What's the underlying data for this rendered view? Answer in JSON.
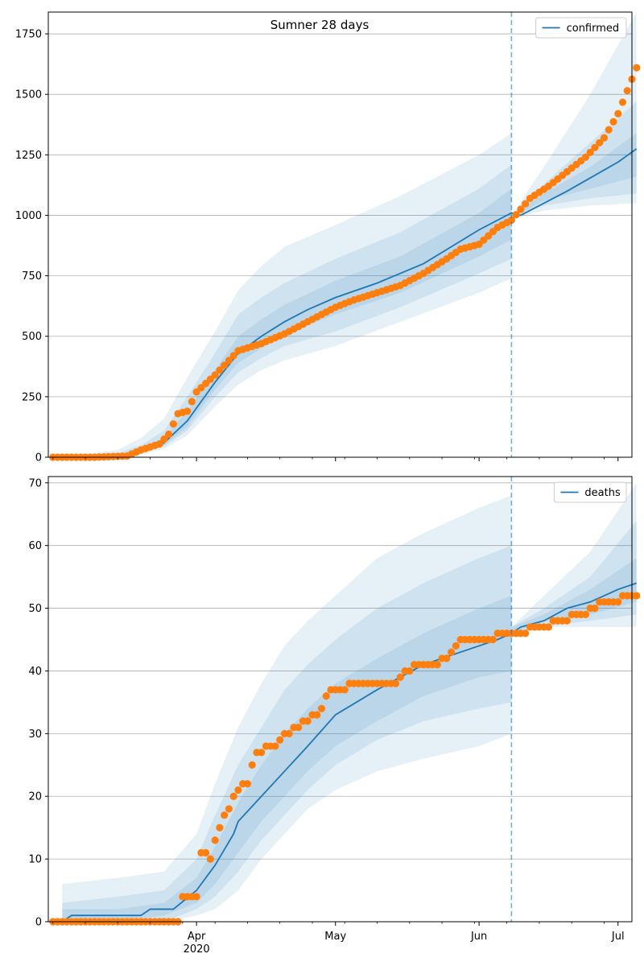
{
  "figure": {
    "title": "Sumner 28 days"
  },
  "chart_data": [
    {
      "type": "line",
      "name": "confirmed-panel",
      "legend": {
        "label": "confirmed",
        "placement": "top-right"
      },
      "ylim": [
        0,
        1840
      ],
      "yticks": [
        0,
        250,
        500,
        750,
        1000,
        1250,
        1500,
        1750
      ],
      "grid": "y",
      "forecast_start": "2020-06-08",
      "fitted": {
        "x": [
          "2020-03-03",
          "2020-03-10",
          "2020-03-15",
          "2020-03-20",
          "2020-03-25",
          "2020-03-30",
          "2020-04-05",
          "2020-04-10",
          "2020-04-15",
          "2020-04-20",
          "2020-04-25",
          "2020-05-01",
          "2020-05-10",
          "2020-05-20",
          "2020-06-01",
          "2020-06-08",
          "2020-06-10",
          "2020-06-20",
          "2020-07-01",
          "2020-07-05"
        ],
        "values": [
          0,
          2,
          8,
          25,
          60,
          150,
          310,
          430,
          500,
          560,
          610,
          660,
          720,
          800,
          940,
          1010,
          1000,
          1100,
          1220,
          1275
        ]
      },
      "bands": [
        {
          "x": [
            "2020-03-03",
            "2020-03-15",
            "2020-03-20",
            "2020-03-25",
            "2020-03-30",
            "2020-04-05",
            "2020-04-10",
            "2020-04-15",
            "2020-04-20",
            "2020-05-01",
            "2020-05-15",
            "2020-06-01",
            "2020-06-08"
          ],
          "low": [
            0,
            2,
            10,
            35,
            90,
            210,
            300,
            360,
            400,
            460,
            560,
            680,
            740
          ],
          "high": [
            0,
            30,
            80,
            160,
            330,
            520,
            690,
            790,
            870,
            960,
            1080,
            1250,
            1340
          ]
        },
        {
          "x": [
            "2020-03-03",
            "2020-03-15",
            "2020-03-20",
            "2020-03-25",
            "2020-03-30",
            "2020-04-05",
            "2020-04-10",
            "2020-04-15",
            "2020-04-20",
            "2020-05-01",
            "2020-05-15",
            "2020-06-01",
            "2020-06-08"
          ],
          "low": [
            0,
            4,
            15,
            45,
            110,
            250,
            350,
            410,
            460,
            520,
            620,
            760,
            820
          ],
          "high": [
            0,
            18,
            50,
            110,
            250,
            430,
            590,
            660,
            720,
            820,
            930,
            1110,
            1210
          ]
        },
        {
          "x": [
            "2020-03-03",
            "2020-03-15",
            "2020-03-20",
            "2020-03-25",
            "2020-03-30",
            "2020-04-05",
            "2020-04-10",
            "2020-04-15",
            "2020-04-20",
            "2020-05-01",
            "2020-05-15",
            "2020-06-01",
            "2020-06-08"
          ],
          "low": [
            0,
            6,
            20,
            50,
            125,
            280,
            390,
            450,
            510,
            590,
            680,
            830,
            900
          ],
          "high": [
            0,
            10,
            35,
            80,
            190,
            360,
            500,
            570,
            630,
            730,
            830,
            1010,
            1110
          ]
        },
        {
          "x": [
            "2020-06-08",
            "2020-06-15",
            "2020-06-25",
            "2020-07-05"
          ],
          "low": [
            985,
            1020,
            1040,
            1050
          ],
          "high": [
            1000,
            1200,
            1500,
            1840
          ]
        },
        {
          "x": [
            "2020-06-08",
            "2020-06-15",
            "2020-06-25",
            "2020-07-05"
          ],
          "low": [
            990,
            1040,
            1070,
            1090
          ],
          "high": [
            995,
            1130,
            1300,
            1470
          ]
        },
        {
          "x": [
            "2020-06-08",
            "2020-06-15",
            "2020-06-25",
            "2020-07-05"
          ],
          "low": [
            992,
            1060,
            1110,
            1160
          ],
          "high": [
            994,
            1090,
            1200,
            1340
          ]
        }
      ],
      "observed": {
        "x": [
          "2020-03-01",
          "2020-03-10",
          "2020-03-17",
          "2020-03-20",
          "2020-03-24",
          "2020-03-26",
          "2020-03-28",
          "2020-03-30",
          "2020-04-01",
          "2020-04-05",
          "2020-04-10",
          "2020-04-15",
          "2020-04-20",
          "2020-04-25",
          "2020-05-01",
          "2020-05-05",
          "2020-05-10",
          "2020-05-15",
          "2020-05-20",
          "2020-05-25",
          "2020-05-28",
          "2020-06-01",
          "2020-06-05",
          "2020-06-08",
          "2020-06-12",
          "2020-06-16",
          "2020-06-20",
          "2020-06-24",
          "2020-06-28",
          "2020-07-01",
          "2020-07-05"
        ],
        "values": [
          0,
          0,
          5,
          30,
          55,
          95,
          180,
          190,
          270,
          340,
          440,
          470,
          510,
          560,
          620,
          650,
          680,
          710,
          760,
          820,
          860,
          880,
          950,
          980,
          1070,
          1120,
          1180,
          1240,
          1320,
          1420,
          1610
        ]
      }
    },
    {
      "type": "line",
      "name": "deaths-panel",
      "legend": {
        "label": "deaths",
        "placement": "top-right"
      },
      "ylim": [
        0,
        71
      ],
      "yticks": [
        0,
        10,
        20,
        30,
        40,
        50,
        60,
        70
      ],
      "xticks": [
        "2020-04-01",
        "2020-05-01",
        "2020-06-01",
        "2020-07-01"
      ],
      "xtick_labels": [
        "Apr",
        "May",
        "Jun",
        "Jul"
      ],
      "xlabel_year": "2020",
      "grid": "y",
      "forecast_start": "2020-06-08",
      "fitted": {
        "x": [
          "2020-03-03",
          "2020-03-05",
          "2020-03-20",
          "2020-03-22",
          "2020-03-27",
          "2020-04-01",
          "2020-04-05",
          "2020-04-09",
          "2020-04-10",
          "2020-04-15",
          "2020-04-20",
          "2020-04-25",
          "2020-05-01",
          "2020-05-10",
          "2020-05-20",
          "2020-06-01",
          "2020-06-05",
          "2020-06-08",
          "2020-06-10",
          "2020-06-15",
          "2020-06-20",
          "2020-06-25",
          "2020-07-01",
          "2020-07-05"
        ],
        "values": [
          0,
          1,
          1,
          2,
          2,
          5,
          9,
          14,
          16,
          20,
          24,
          28,
          33,
          37,
          41,
          44,
          45,
          46,
          47,
          48,
          50,
          51,
          53,
          54
        ]
      },
      "bands": [
        {
          "x": [
            "2020-03-03",
            "2020-03-15",
            "2020-03-25",
            "2020-04-01",
            "2020-04-05",
            "2020-04-10",
            "2020-04-15",
            "2020-04-20",
            "2020-04-25",
            "2020-05-01",
            "2020-05-10",
            "2020-05-20",
            "2020-06-01",
            "2020-06-08"
          ],
          "low": [
            0,
            0,
            0,
            1,
            2,
            5,
            10,
            14,
            18,
            21,
            24,
            26,
            28,
            30
          ],
          "high": [
            6,
            7,
            8,
            14,
            22,
            31,
            38,
            44,
            48,
            52,
            58,
            62,
            66,
            68
          ]
        },
        {
          "x": [
            "2020-03-03",
            "2020-03-15",
            "2020-03-25",
            "2020-04-01",
            "2020-04-05",
            "2020-04-10",
            "2020-04-15",
            "2020-04-20",
            "2020-04-25",
            "2020-05-01",
            "2020-05-10",
            "2020-05-20",
            "2020-06-01",
            "2020-06-08"
          ],
          "low": [
            0,
            0,
            0,
            2,
            4,
            8,
            13,
            17,
            21,
            25,
            29,
            32,
            34,
            35
          ],
          "high": [
            3,
            4,
            5,
            10,
            17,
            25,
            31,
            37,
            41,
            45,
            50,
            54,
            58,
            60
          ]
        },
        {
          "x": [
            "2020-03-03",
            "2020-03-15",
            "2020-03-25",
            "2020-04-01",
            "2020-04-05",
            "2020-04-10",
            "2020-04-15",
            "2020-04-20",
            "2020-04-25",
            "2020-05-01",
            "2020-05-10",
            "2020-05-20",
            "2020-06-01",
            "2020-06-08"
          ],
          "low": [
            0,
            0,
            1,
            3,
            6,
            11,
            16,
            20,
            24,
            28,
            32,
            36,
            39,
            40
          ],
          "high": [
            2,
            2,
            3,
            7,
            12,
            19,
            25,
            30,
            34,
            38,
            42,
            46,
            50,
            52
          ]
        },
        {
          "x": [
            "2020-06-08",
            "2020-06-15",
            "2020-06-25",
            "2020-07-05"
          ],
          "low": [
            46,
            47,
            47,
            47
          ],
          "high": [
            47,
            52,
            59,
            70
          ]
        },
        {
          "x": [
            "2020-06-08",
            "2020-06-15",
            "2020-06-25",
            "2020-07-05"
          ],
          "low": [
            46,
            47,
            48,
            49
          ],
          "high": [
            47,
            50,
            55,
            64
          ]
        },
        {
          "x": [
            "2020-06-08",
            "2020-06-15",
            "2020-06-25",
            "2020-07-05"
          ],
          "low": [
            46,
            48,
            49,
            51
          ],
          "high": [
            47,
            49,
            53,
            58
          ]
        }
      ],
      "observed": {
        "x": [
          "2020-03-01",
          "2020-03-28",
          "2020-03-29",
          "2020-04-01",
          "2020-04-02",
          "2020-04-04",
          "2020-04-06",
          "2020-04-08",
          "2020-04-10",
          "2020-04-12",
          "2020-04-14",
          "2020-04-18",
          "2020-04-22",
          "2020-04-25",
          "2020-04-28",
          "2020-04-30",
          "2020-05-02",
          "2020-05-05",
          "2020-05-10",
          "2020-05-14",
          "2020-05-16",
          "2020-05-20",
          "2020-05-22",
          "2020-05-25",
          "2020-05-28",
          "2020-06-01",
          "2020-06-08",
          "2020-06-10",
          "2020-06-14",
          "2020-06-19",
          "2020-06-23",
          "2020-06-28",
          "2020-07-05"
        ],
        "values": [
          0,
          0,
          4,
          4,
          11,
          10,
          15,
          18,
          21,
          22,
          27,
          28,
          31,
          32,
          34,
          37,
          37,
          38,
          38,
          38,
          40,
          41,
          41,
          42,
          45,
          45,
          46,
          46,
          47,
          48,
          49,
          51,
          52
        ]
      }
    }
  ]
}
